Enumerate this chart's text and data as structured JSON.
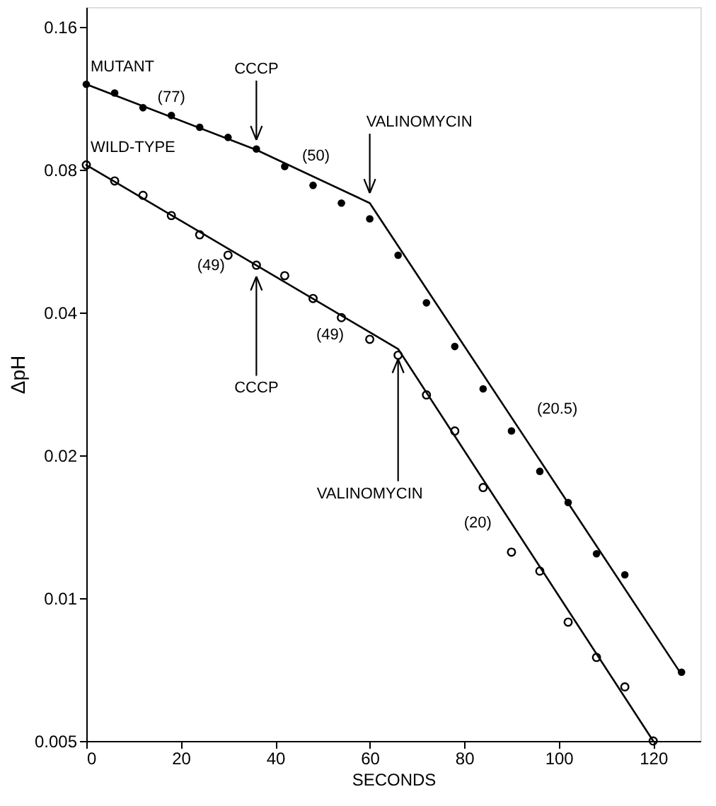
{
  "chart_data": {
    "type": "scatter",
    "xlabel": "SECONDS",
    "ylabel": "ΔpH",
    "log": "y",
    "grid": false,
    "xlim": [
      0,
      130
    ],
    "xticks": [
      0,
      20,
      40,
      60,
      80,
      100,
      120
    ],
    "ylim": [
      0.005,
      0.176
    ],
    "yticks": [
      0.005,
      0.01,
      0.02,
      0.04,
      0.08,
      0.16
    ],
    "series": [
      {
        "name": "MUTANT",
        "marker": "circle",
        "color": "#000000",
        "x": [
          0,
          6,
          12,
          18,
          24,
          30,
          36,
          42,
          48,
          54,
          60,
          66,
          72,
          78,
          84,
          90,
          96,
          102,
          108,
          114,
          126
        ],
        "values": [
          0.121,
          0.116,
          0.108,
          0.104,
          0.0982,
          0.0935,
          0.0884,
          0.0812,
          0.0741,
          0.068,
          0.063,
          0.0528,
          0.0419,
          0.0339,
          0.0276,
          0.0225,
          0.0185,
          0.0159,
          0.0124,
          0.0112,
          0.00698
        ]
      },
      {
        "name": "WILD-TYPE",
        "marker": "circle",
        "color": "#000000",
        "x": [
          0,
          6,
          12,
          18,
          24,
          30,
          36,
          42,
          48,
          54,
          60,
          66,
          72,
          78,
          84,
          90,
          96,
          102,
          108,
          114,
          120
        ],
        "values": [
          0.0818,
          0.0757,
          0.0706,
          0.064,
          0.0583,
          0.0528,
          0.0503,
          0.0478,
          0.0428,
          0.039,
          0.0351,
          0.0325,
          0.0268,
          0.0225,
          0.0171,
          0.0125,
          0.0114,
          0.0089,
          0.0075,
          0.0065,
          0.005
        ]
      },
      {
        "type": "line",
        "color": "#000000",
        "x": [
          0,
          36,
          60,
          126
        ],
        "values": [
          0.121,
          0.088,
          0.068,
          0.0069
        ]
      },
      {
        "type": "line",
        "color": "#000000",
        "x": [
          0,
          66,
          120
        ],
        "values": [
          0.0818,
          0.0335,
          0.005
        ]
      }
    ],
    "annotations": [
      {
        "text": "CCCP",
        "x": 36,
        "y": 0.088
      },
      {
        "text": "VALINOMYCIN",
        "x": 60,
        "y": 0.068
      },
      {
        "text": "CCCP",
        "x": 36,
        "y": 0.05
      },
      {
        "text": "VALINOMYCIN",
        "x": 66,
        "y": 0.0335
      },
      {
        "text": "(77)",
        "x": 18,
        "y": 0.1032
      },
      {
        "text": "(50)",
        "x": 48,
        "y": 0.0774
      },
      {
        "text": "(20.5)",
        "x": 90,
        "y": 0.024
      },
      {
        "text": "(49)",
        "x": 30,
        "y": 0.0545
      },
      {
        "text": "(49)",
        "x": 54,
        "y": 0.0394
      },
      {
        "text": "(20)",
        "x": 90,
        "y": 0.0144
      }
    ]
  }
}
